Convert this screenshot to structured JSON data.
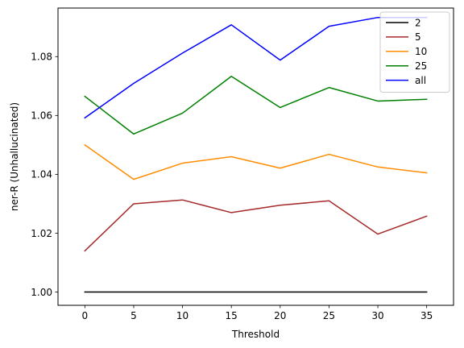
{
  "chart_data": {
    "type": "line",
    "title": "",
    "xlabel": "Threshold",
    "ylabel": "ner-R (Unhallucinated)",
    "x": [
      0,
      5,
      10,
      15,
      20,
      25,
      30,
      35
    ],
    "xlim": [
      -2.75,
      37.75
    ],
    "ylim": [
      0.9955,
      1.0965
    ],
    "xticks": [
      0,
      5,
      10,
      15,
      20,
      25,
      30,
      35
    ],
    "xtick_labels": [
      "0",
      "5",
      "10",
      "15",
      "20",
      "25",
      "30",
      "35"
    ],
    "yticks": [
      1.0,
      1.02,
      1.04,
      1.06,
      1.08
    ],
    "ytick_labels": [
      "1.00",
      "1.02",
      "1.04",
      "1.06",
      "1.08"
    ],
    "grid": false,
    "legend_position": "top-right",
    "series": [
      {
        "name": "2",
        "color": "#000000",
        "values": [
          1.0,
          1.0,
          1.0,
          1.0,
          1.0,
          1.0,
          1.0,
          1.0
        ]
      },
      {
        "name": "5",
        "color": "#a52a2a",
        "values": [
          1.014,
          1.03,
          1.0313,
          1.027,
          1.0295,
          1.031,
          1.0197,
          1.0258
        ]
      },
      {
        "name": "10",
        "color": "#ff8c00",
        "values": [
          1.05,
          1.0383,
          1.0438,
          1.046,
          1.0421,
          1.0468,
          1.0425,
          1.0405
        ]
      },
      {
        "name": "25",
        "color": "#008000",
        "values": [
          1.0665,
          1.0537,
          1.0608,
          1.0733,
          1.0627,
          1.0695,
          1.0649,
          1.0655
        ]
      },
      {
        "name": "all",
        "color": "#0000ff",
        "values": [
          1.0592,
          1.0709,
          1.0812,
          1.0908,
          1.0788,
          1.0903,
          1.0933,
          1.0933
        ]
      }
    ]
  }
}
